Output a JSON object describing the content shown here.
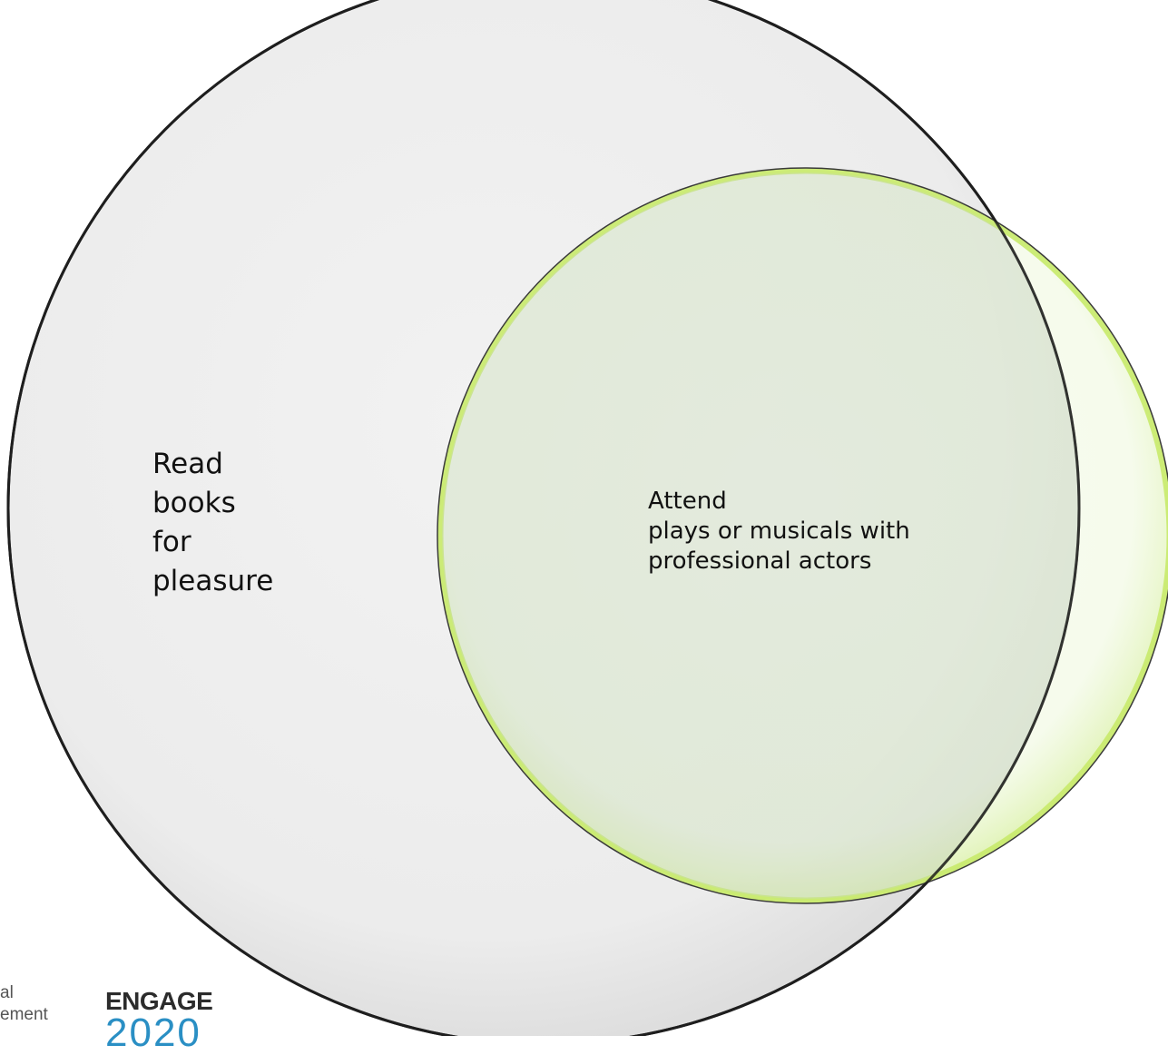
{
  "diagram": {
    "type": "venn",
    "sets": [
      {
        "lines": [
          "Read",
          "books",
          "for",
          "pleasure"
        ],
        "fill": "#ececec",
        "stroke": "#2b2b2b"
      },
      {
        "lines": [
          "Attend",
          "plays or musicals with",
          "professional actors"
        ],
        "fill": "#e9f5d8",
        "rim": "#c8ea6a"
      }
    ]
  },
  "logos": {
    "left_lines": [
      "al",
      "ement"
    ],
    "engage_word": "ENGAGE",
    "engage_year": "2020",
    "year_color": "#2a8fc4"
  }
}
